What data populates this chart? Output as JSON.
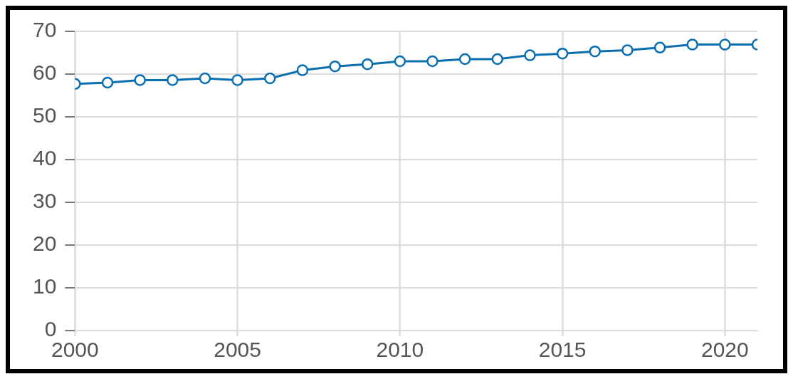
{
  "chart_data": {
    "type": "line",
    "x": [
      2000,
      2001,
      2002,
      2003,
      2004,
      2005,
      2006,
      2007,
      2008,
      2009,
      2010,
      2011,
      2012,
      2013,
      2014,
      2015,
      2016,
      2017,
      2018,
      2019,
      2020,
      2021
    ],
    "series": [
      {
        "color": "#0a6fb0",
        "values": [
          57.7,
          58.0,
          58.6,
          58.6,
          59.0,
          58.6,
          59.0,
          60.9,
          61.8,
          62.3,
          63.0,
          63.0,
          63.5,
          63.5,
          64.4,
          64.8,
          65.3,
          65.6,
          66.2,
          66.9,
          66.9,
          66.9
        ]
      }
    ],
    "xlim": [
      2000,
      2021
    ],
    "xticks": [
      2000,
      2005,
      2010,
      2015,
      2020
    ],
    "ylim": [
      0,
      70
    ],
    "yticks": [
      0,
      10,
      20,
      30,
      40,
      50,
      60,
      70
    ],
    "grid": true,
    "legend": false,
    "marker": "circle",
    "line_style": "solid"
  }
}
